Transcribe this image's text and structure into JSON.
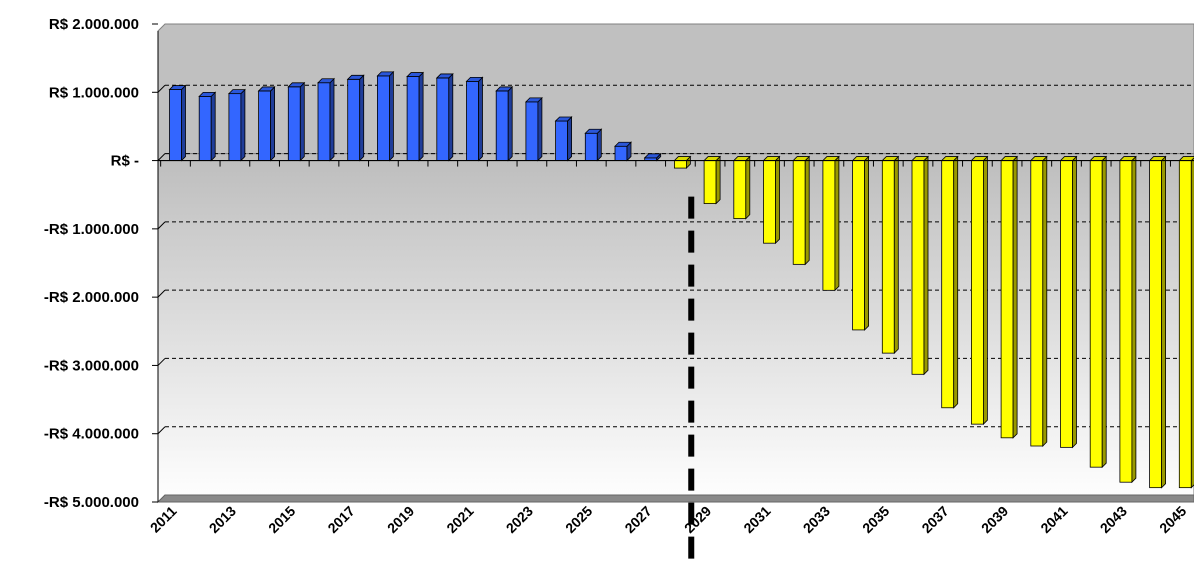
{
  "chart_data": {
    "type": "bar",
    "title": "",
    "xlabel": "",
    "ylabel": "",
    "ylim": [
      -5000000,
      2000000
    ],
    "grid": true,
    "x_tick_labels": [
      "2011",
      "2013",
      "2015",
      "2017",
      "2019",
      "2021",
      "2023",
      "2025",
      "2027",
      "2029",
      "2031",
      "2033",
      "2035",
      "2037",
      "2039",
      "2041",
      "2043",
      "2045"
    ],
    "y_tick_labels": [
      "R$ 2.000.000",
      "R$ 1.000.000",
      "R$ -",
      "-R$ 1.000.000",
      "-R$ 2.000.000",
      "-R$ 3.000.000",
      "-R$ 4.000.000",
      "-R$ 5.000.000"
    ],
    "y_tick_values": [
      2000000,
      1000000,
      0,
      -1000000,
      -2000000,
      -3000000,
      -4000000,
      -5000000
    ],
    "categories": [
      2011,
      2012,
      2013,
      2014,
      2015,
      2016,
      2017,
      2018,
      2019,
      2020,
      2021,
      2022,
      2023,
      2024,
      2025,
      2026,
      2027,
      2028,
      2029,
      2030,
      2031,
      2032,
      2033,
      2034,
      2035,
      2036,
      2037,
      2038,
      2039,
      2040,
      2041,
      2042,
      2043,
      2044,
      2045
    ],
    "values": [
      1040000,
      940000,
      980000,
      1020000,
      1080000,
      1140000,
      1190000,
      1240000,
      1230000,
      1210000,
      1160000,
      1020000,
      860000,
      580000,
      400000,
      210000,
      40000,
      -110000,
      -630000,
      -850000,
      -1210000,
      -1520000,
      -1900000,
      -2480000,
      -2820000,
      -3130000,
      -3620000,
      -3860000,
      -4060000,
      -4180000,
      -4200000,
      -4490000,
      -4710000,
      -4790000,
      -4790000
    ],
    "colors": {
      "positive": "#3366ff",
      "negative": "#ffff00",
      "divider": "#000000"
    },
    "divider_year": 2028.5
  }
}
